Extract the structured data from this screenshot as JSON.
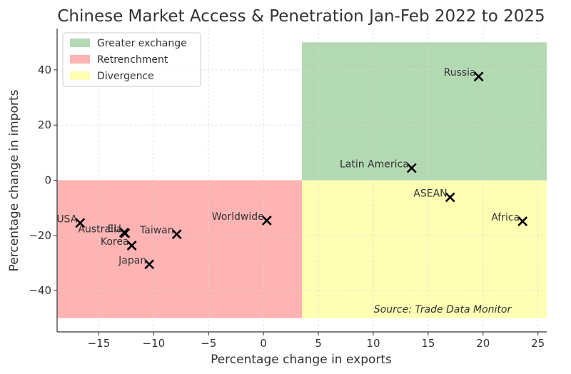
{
  "chart_data": {
    "type": "scatter",
    "title": "Chinese Market Access & Penetration Jan-Feb 2022 to 2025",
    "xlabel": "Percentage change in exports",
    "ylabel": "Percentage change in imports",
    "xlim": [
      -18.8,
      25.8
    ],
    "ylim": [
      -55,
      55
    ],
    "grid": true,
    "xticks": [
      -15,
      -10,
      -5,
      0,
      5,
      10,
      15,
      20,
      25
    ],
    "yticks": [
      -40,
      -20,
      0,
      20,
      40
    ],
    "xtick_labels": [
      "−15",
      "−10",
      "−5",
      "0",
      "5",
      "10",
      "15",
      "20",
      "25"
    ],
    "ytick_labels": [
      "−40",
      "−20",
      "0",
      "20",
      "40"
    ],
    "regions": [
      {
        "name": "Greater exchange",
        "color": "#b3d9b3",
        "x": [
          3.5,
          25.8
        ],
        "y": [
          0,
          50
        ]
      },
      {
        "name": "Retrenchment",
        "color": "#ffb3b3",
        "x": [
          -18.8,
          3.5
        ],
        "y": [
          -50,
          0
        ]
      },
      {
        "name": "Divergence",
        "color": "#ffffb3",
        "x": [
          3.5,
          25.8
        ],
        "y": [
          -50,
          0
        ]
      }
    ],
    "legend": {
      "location": "top-left",
      "entries": [
        "Greater exchange",
        "Retrenchment",
        "Divergence"
      ]
    },
    "points": [
      {
        "label": "Russia",
        "x": 19.6,
        "y": 37.6,
        "anchor": "end"
      },
      {
        "label": "Latin America",
        "x": 13.5,
        "y": 4.4,
        "anchor": "end"
      },
      {
        "label": "ASEAN",
        "x": 17.0,
        "y": -6.2,
        "anchor": "end"
      },
      {
        "label": "Africa",
        "x": 23.6,
        "y": -14.9,
        "anchor": "end"
      },
      {
        "label": "Worldwide",
        "x": 0.3,
        "y": -14.6,
        "anchor": "end"
      },
      {
        "label": "USA",
        "x": -16.7,
        "y": -15.5,
        "anchor": "end"
      },
      {
        "label": "EU",
        "x": -12.7,
        "y": -19.0,
        "anchor": "end"
      },
      {
        "label": "Australia",
        "x": -12.6,
        "y": -19.2,
        "anchor": "end"
      },
      {
        "label": "Taiwan",
        "x": -7.9,
        "y": -19.6,
        "anchor": "end"
      },
      {
        "label": "Korea",
        "x": -12.0,
        "y": -23.7,
        "anchor": "end"
      },
      {
        "label": "Japan",
        "x": -10.4,
        "y": -30.5,
        "anchor": "end"
      }
    ],
    "annotation": "Source: Trade Data Monitor"
  },
  "colors": {
    "marker": "#000000",
    "axis": "#333333",
    "grid": "#d9d9d9"
  }
}
